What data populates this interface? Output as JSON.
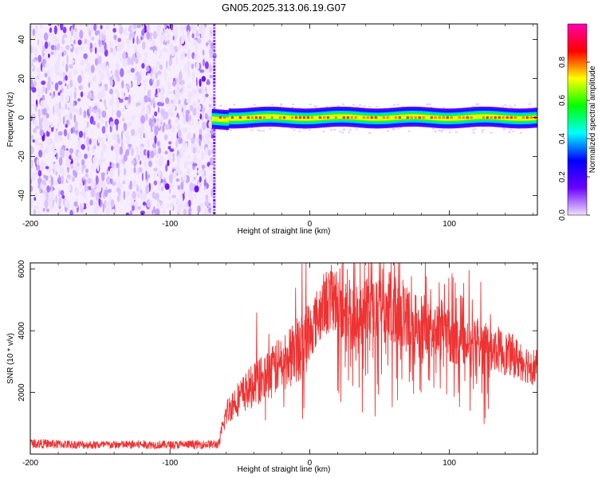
{
  "title": "GN05.2025.313.06.19.G07",
  "chart_data": [
    {
      "type": "heatmap",
      "name": "spectrogram",
      "xlabel": "Height of straight line (km)",
      "ylabel": "Frequency (Hz)",
      "xlim": [
        -200,
        163
      ],
      "ylim": [
        -50,
        48
      ],
      "xticks": [
        -200,
        -100,
        0,
        100
      ],
      "xtick_labels": [
        "-200",
        "-100",
        "0",
        "100"
      ],
      "yticks": [
        -40,
        -20,
        0,
        20,
        40
      ],
      "ytick_labels": [
        "-40",
        "-20",
        "0",
        "20",
        "40"
      ],
      "noise_region_x": [
        -200,
        -68
      ],
      "signal_band_x": [
        -70,
        163
      ],
      "signal_band_freq_hz": 0,
      "signal_band_halfwidth_hz": 3,
      "colorbar": {
        "label": "Normalized spectral amplitude",
        "range": [
          0,
          1
        ],
        "ticks": [
          0.0,
          0.2,
          0.4,
          0.6,
          0.8
        ],
        "tick_labels": [
          "0.0",
          "0.2",
          "0.4",
          "0.6",
          "0.8"
        ],
        "colors": [
          "#f0e0ff",
          "#6a00ff",
          "#0000ff",
          "#00ffff",
          "#00ff00",
          "#ffff00",
          "#ff0000",
          "#ff00aa"
        ]
      }
    },
    {
      "type": "line",
      "name": "snr",
      "xlabel": "Height of straight line (km)",
      "ylabel": "SNR (10 * v/v)",
      "xlim": [
        -200,
        163
      ],
      "ylim": [
        0,
        6200
      ],
      "xticks": [
        -200,
        -100,
        0,
        100
      ],
      "xtick_labels": [
        "-200",
        "-100",
        "0",
        "100"
      ],
      "yticks": [
        2000,
        4000,
        6000
      ],
      "ytick_labels": [
        "2000",
        "4000",
        "6000"
      ],
      "color": "#ee3333",
      "x": [
        -200,
        -180,
        -160,
        -140,
        -120,
        -100,
        -80,
        -65,
        -60,
        -55,
        -50,
        -45,
        -40,
        -35,
        -30,
        -25,
        -20,
        -15,
        -10,
        -5,
        0,
        5,
        10,
        15,
        20,
        25,
        30,
        35,
        40,
        45,
        50,
        55,
        60,
        65,
        70,
        75,
        80,
        85,
        90,
        95,
        100,
        105,
        110,
        115,
        120,
        125,
        130,
        135,
        140,
        145,
        150,
        155,
        160,
        163
      ],
      "y": [
        350,
        320,
        300,
        300,
        310,
        300,
        310,
        320,
        1300,
        1650,
        1850,
        2050,
        2250,
        2400,
        2550,
        2750,
        2950,
        3100,
        3350,
        3600,
        3950,
        4400,
        4850,
        5050,
        4950,
        4650,
        4350,
        4550,
        4650,
        4750,
        4700,
        4650,
        4600,
        4500,
        4450,
        4300,
        4250,
        4150,
        4000,
        3850,
        3800,
        3700,
        3650,
        3650,
        3550,
        3500,
        3450,
        3400,
        3250,
        3200,
        3050,
        2950,
        2850,
        2800
      ]
    }
  ]
}
